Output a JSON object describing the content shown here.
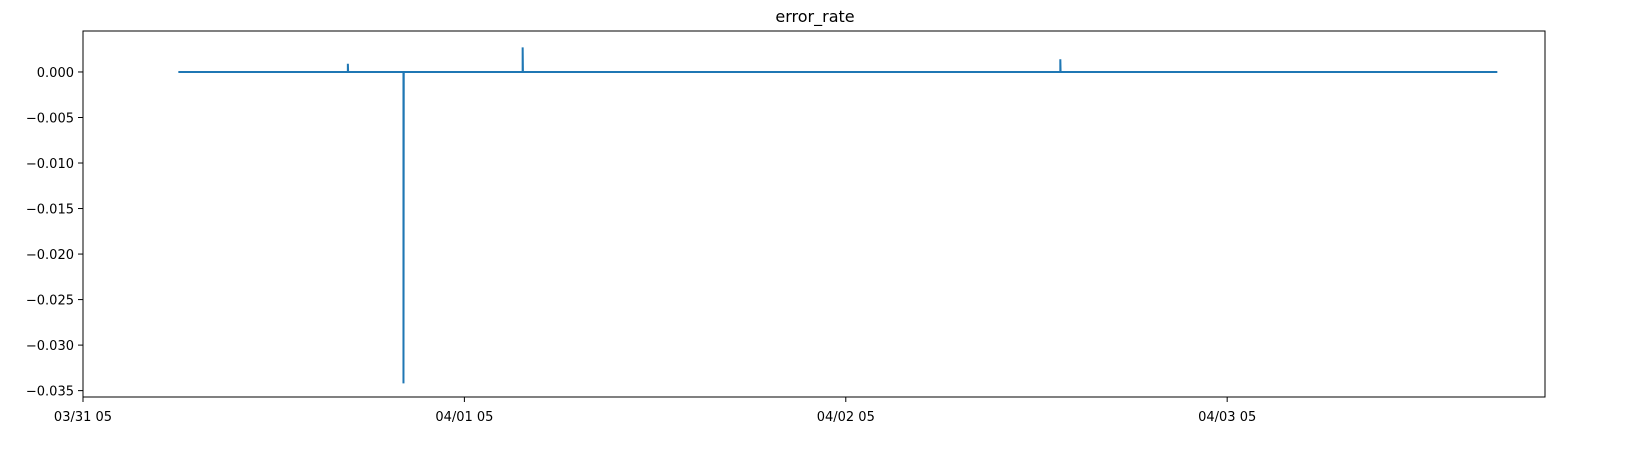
{
  "chart_data": {
    "type": "line",
    "title": "error_rate",
    "xlabel": "",
    "ylabel": "",
    "grid": false,
    "x_ticks": [
      {
        "value": "2024-03-31T05:00:00",
        "label": "03/31 05"
      },
      {
        "value": "2024-04-01T05:00:00",
        "label": "04/01 05"
      },
      {
        "value": "2024-04-02T05:00:00",
        "label": "04/02 05"
      },
      {
        "value": "2024-04-03T05:00:00",
        "label": "04/03 05"
      }
    ],
    "y_ticks": [
      0.0,
      -0.005,
      -0.01,
      -0.015,
      -0.02,
      -0.025,
      -0.03,
      -0.035
    ],
    "y_tick_labels": [
      "0.000",
      "−0.005",
      "−0.010",
      "−0.015",
      "−0.020",
      "−0.025",
      "−0.030",
      "−0.035"
    ],
    "xlim": [
      "2024-03-31T05:00:00",
      "2024-04-04T01:00:00"
    ],
    "ylim": [
      -0.0357,
      0.0045
    ],
    "series": [
      {
        "color": "#1f77b4",
        "points": [
          {
            "x": "2024-03-31T11:00:00",
            "y": 0.0
          },
          {
            "x": "2024-03-31T21:40:00",
            "y": 0.0
          },
          {
            "x": "2024-03-31T21:40:00",
            "y": 0.0009
          },
          {
            "x": "2024-03-31T21:41:00",
            "y": 0.0
          },
          {
            "x": "2024-04-01T01:10:00",
            "y": 0.0
          },
          {
            "x": "2024-04-01T01:10:00",
            "y": -0.0342
          },
          {
            "x": "2024-04-01T01:11:00",
            "y": 0.0
          },
          {
            "x": "2024-04-01T08:40:00",
            "y": 0.0
          },
          {
            "x": "2024-04-01T08:40:00",
            "y": 0.0027
          },
          {
            "x": "2024-04-01T08:41:00",
            "y": 0.0
          },
          {
            "x": "2024-04-02T18:30:00",
            "y": 0.0
          },
          {
            "x": "2024-04-02T18:30:00",
            "y": 0.0014
          },
          {
            "x": "2024-04-02T18:31:00",
            "y": 0.0
          },
          {
            "x": "2024-04-03T22:00:00",
            "y": 0.0
          }
        ]
      }
    ]
  }
}
